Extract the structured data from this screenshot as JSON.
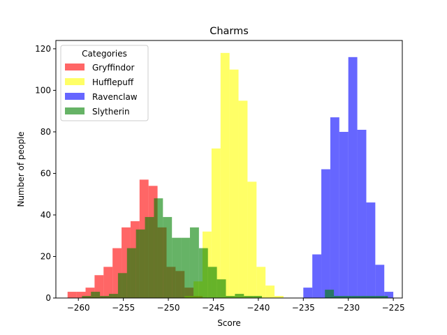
{
  "chart_data": {
    "type": "histogram",
    "title": "Charms",
    "xlabel": "Score",
    "ylabel": "Number of people",
    "xlim": [
      -262.5,
      -224
    ],
    "ylim": [
      0,
      124
    ],
    "xticks": [
      -260,
      -255,
      -250,
      -245,
      -240,
      -235,
      -230,
      -225
    ],
    "yticks": [
      0,
      20,
      40,
      60,
      80,
      100,
      120
    ],
    "legend": {
      "title": "Categories",
      "position": "top-left"
    },
    "series": [
      {
        "name": "Gryffindor",
        "color": "#ff0000",
        "opacity": 0.6,
        "bins": [
          {
            "x0": -261.2,
            "x1": -260.2,
            "count": 3
          },
          {
            "x0": -260.2,
            "x1": -259.2,
            "count": 3
          },
          {
            "x0": -259.2,
            "x1": -258.2,
            "count": 5
          },
          {
            "x0": -258.2,
            "x1": -257.2,
            "count": 11
          },
          {
            "x0": -257.2,
            "x1": -256.2,
            "count": 15
          },
          {
            "x0": -256.2,
            "x1": -255.2,
            "count": 24
          },
          {
            "x0": -255.2,
            "x1": -254.2,
            "count": 34
          },
          {
            "x0": -254.2,
            "x1": -253.2,
            "count": 37
          },
          {
            "x0": -253.2,
            "x1": -252.2,
            "count": 57
          },
          {
            "x0": -252.2,
            "x1": -251.2,
            "count": 54
          },
          {
            "x0": -251.2,
            "x1": -250.2,
            "count": 34
          },
          {
            "x0": -250.2,
            "x1": -249.2,
            "count": 15
          },
          {
            "x0": -249.2,
            "x1": -248.2,
            "count": 13
          },
          {
            "x0": -248.2,
            "x1": -247.2,
            "count": 5
          },
          {
            "x0": -247.2,
            "x1": -246.2,
            "count": 1
          }
        ]
      },
      {
        "name": "Hufflepuff",
        "color": "#ffff00",
        "opacity": 0.6,
        "bins": [
          {
            "x0": -248.2,
            "x1": -247.2,
            "count": 1
          },
          {
            "x0": -247.2,
            "x1": -246.2,
            "count": 8
          },
          {
            "x0": -246.2,
            "x1": -245.2,
            "count": 32
          },
          {
            "x0": -245.2,
            "x1": -244.2,
            "count": 72
          },
          {
            "x0": -244.2,
            "x1": -243.2,
            "count": 118
          },
          {
            "x0": -243.2,
            "x1": -242.2,
            "count": 110
          },
          {
            "x0": -242.2,
            "x1": -241.2,
            "count": 95
          },
          {
            "x0": -241.2,
            "x1": -240.2,
            "count": 56
          },
          {
            "x0": -240.2,
            "x1": -239.2,
            "count": 15
          },
          {
            "x0": -239.2,
            "x1": -238.2,
            "count": 6
          },
          {
            "x0": -238.2,
            "x1": -237.2,
            "count": 1
          }
        ]
      },
      {
        "name": "Ravenclaw",
        "color": "#0000ff",
        "opacity": 0.6,
        "bins": [
          {
            "x0": -235.0,
            "x1": -234.0,
            "count": 5
          },
          {
            "x0": -234.0,
            "x1": -233.0,
            "count": 21
          },
          {
            "x0": -233.0,
            "x1": -232.0,
            "count": 62
          },
          {
            "x0": -232.0,
            "x1": -231.0,
            "count": 87
          },
          {
            "x0": -231.0,
            "x1": -230.0,
            "count": 80
          },
          {
            "x0": -230.0,
            "x1": -229.0,
            "count": 116
          },
          {
            "x0": -229.0,
            "x1": -228.0,
            "count": 81
          },
          {
            "x0": -228.0,
            "x1": -227.0,
            "count": 46
          },
          {
            "x0": -227.0,
            "x1": -226.0,
            "count": 16
          },
          {
            "x0": -226.0,
            "x1": -225.0,
            "count": 3
          }
        ]
      },
      {
        "name": "Slytherin",
        "color": "#008000",
        "opacity": 0.6,
        "bins": [
          {
            "x0": -259.6,
            "x1": -258.6,
            "count": 1
          },
          {
            "x0": -258.6,
            "x1": -257.6,
            "count": 3
          },
          {
            "x0": -257.6,
            "x1": -256.6,
            "count": 1
          },
          {
            "x0": -256.6,
            "x1": -255.6,
            "count": 2
          },
          {
            "x0": -255.6,
            "x1": -254.6,
            "count": 12
          },
          {
            "x0": -254.6,
            "x1": -253.6,
            "count": 24
          },
          {
            "x0": -253.6,
            "x1": -252.6,
            "count": 33
          },
          {
            "x0": -252.6,
            "x1": -251.6,
            "count": 39
          },
          {
            "x0": -251.6,
            "x1": -250.6,
            "count": 48
          },
          {
            "x0": -250.6,
            "x1": -249.6,
            "count": 39
          },
          {
            "x0": -249.6,
            "x1": -248.6,
            "count": 29
          },
          {
            "x0": -248.6,
            "x1": -247.6,
            "count": 29
          },
          {
            "x0": -247.6,
            "x1": -246.6,
            "count": 34
          },
          {
            "x0": -246.6,
            "x1": -245.6,
            "count": 24
          },
          {
            "x0": -245.6,
            "x1": -244.6,
            "count": 15
          },
          {
            "x0": -244.6,
            "x1": -243.6,
            "count": 9
          },
          {
            "x0": -243.6,
            "x1": -242.6,
            "count": 1
          },
          {
            "x0": -242.6,
            "x1": -241.6,
            "count": 2
          },
          {
            "x0": -241.6,
            "x1": -240.6,
            "count": 1
          },
          {
            "x0": -240.6,
            "x1": -239.6,
            "count": 1
          },
          {
            "x0": -232.6,
            "x1": -231.6,
            "count": 4
          },
          {
            "x0": -231.6,
            "x1": -230.6,
            "count": 1
          },
          {
            "x0": -230.6,
            "x1": -229.6,
            "count": 1
          },
          {
            "x0": -229.6,
            "x1": -228.6,
            "count": 1
          },
          {
            "x0": -228.6,
            "x1": -227.6,
            "count": 1
          },
          {
            "x0": -227.6,
            "x1": -226.6,
            "count": 1
          },
          {
            "x0": -226.6,
            "x1": -225.6,
            "count": 1
          }
        ]
      }
    ]
  }
}
